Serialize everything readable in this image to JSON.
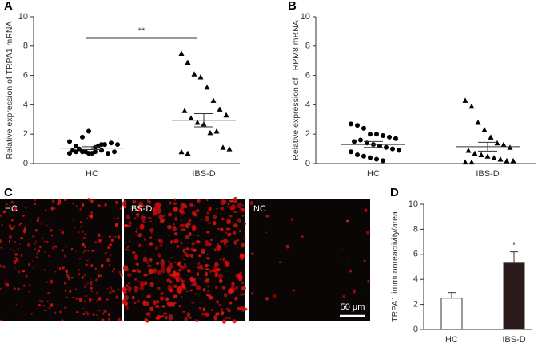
{
  "chart_data": [
    {
      "type": "dotplot",
      "panel_label": "A",
      "ylabel": "Relative expression of TRPA1 mRNA",
      "categories": [
        "HC",
        "IBS-D"
      ],
      "markers": [
        "circle",
        "triangle"
      ],
      "color": "#000000",
      "values": [
        [
          0.7,
          0.8,
          0.8,
          0.7,
          0.8,
          0.9,
          0.7,
          0.8,
          0.9,
          1.0,
          0.8,
          0.7,
          1.2,
          1.3,
          1.4,
          1.3,
          1.5,
          1.2,
          1.8,
          2.2,
          1.1,
          1.3
        ],
        [
          7.5,
          6.9,
          6.1,
          5.9,
          5.2,
          4.3,
          3.7,
          3.3,
          3.6,
          3.1,
          2.8,
          2.7,
          2.1,
          2.2,
          1.1,
          1.0,
          0.8,
          0.7
        ]
      ],
      "means": [
        1.05,
        2.95
      ],
      "sems": [
        0.1,
        0.45
      ],
      "annotation": "**",
      "ylim": [
        0,
        10
      ],
      "yticks": [
        0,
        2,
        4,
        6,
        8,
        10
      ]
    },
    {
      "type": "dotplot",
      "panel_label": "B",
      "ylabel": "Relative expression of TRPM8 mRNA",
      "categories": [
        "HC",
        "IBS-D"
      ],
      "markers": [
        "circle",
        "triangle"
      ],
      "color": "#000000",
      "values": [
        [
          2.7,
          2.6,
          2.4,
          2.0,
          2.0,
          1.9,
          1.8,
          1.7,
          1.5,
          1.6,
          1.4,
          1.3,
          1.2,
          1.1,
          1.0,
          0.9,
          0.8,
          0.6,
          0.5,
          0.4,
          0.3,
          0.2
        ],
        [
          4.3,
          3.9,
          2.8,
          2.3,
          1.8,
          1.4,
          1.3,
          1.1,
          0.9,
          0.7,
          0.6,
          0.5,
          0.4,
          0.3,
          0.2,
          0.2,
          0.1,
          0.1
        ]
      ],
      "means": [
        1.3,
        1.15
      ],
      "sems": [
        0.2,
        0.3
      ],
      "ylim": [
        0,
        10
      ],
      "yticks": [
        0,
        2,
        4,
        6,
        8,
        10
      ]
    },
    {
      "type": "bar",
      "panel_label": "D",
      "ylabel": "TRPA1 immunoreactivity/area",
      "categories": [
        "HC",
        "IBS-D"
      ],
      "values": [
        2.5,
        5.3
      ],
      "errors": [
        0.45,
        0.9
      ],
      "colors": [
        "#ffffff",
        "#2b1a1a"
      ],
      "annotation": "*",
      "ylim": [
        0,
        10
      ],
      "yticks": [
        0,
        2,
        4,
        6,
        8,
        10
      ]
    }
  ],
  "figure_c": {
    "panel_label": "C",
    "images": [
      {
        "label": "HC"
      },
      {
        "label": "IBS-D"
      },
      {
        "label": "NC"
      }
    ],
    "scale_bar": "50 μm"
  }
}
